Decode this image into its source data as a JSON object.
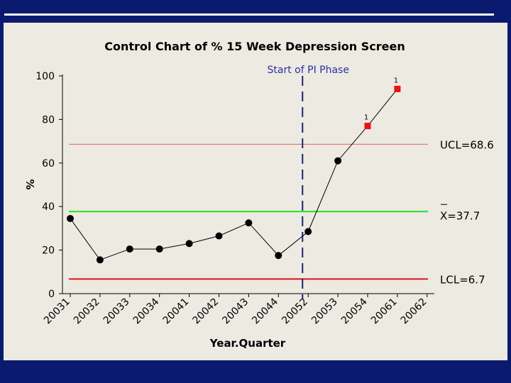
{
  "colors": {
    "background": "#0a1a6e",
    "panel": "#edeae2",
    "ucl_line": "#e06060",
    "mean_line": "#22dd22",
    "lcl_line": "#dd1111",
    "phase_line": "#1a237e",
    "point": "#000000",
    "flagged_point": "#ee1111"
  },
  "chart_data": {
    "type": "line",
    "title": "Control Chart of % 15 Week Depression Screen",
    "xlabel": "Year.Quarter",
    "ylabel": "%",
    "ylim": [
      0,
      100
    ],
    "yticks": [
      0,
      20,
      40,
      60,
      80,
      100
    ],
    "categories": [
      "20031",
      "20032",
      "20033",
      "20034",
      "20041",
      "20042",
      "20043",
      "20044",
      "20052",
      "20053",
      "20054",
      "20061",
      "20062"
    ],
    "values": [
      34.5,
      15.5,
      20.5,
      20.5,
      23,
      26.5,
      32.5,
      17.5,
      28.5,
      61,
      77,
      94,
      null
    ],
    "flagged": [
      false,
      false,
      false,
      false,
      false,
      false,
      false,
      false,
      false,
      false,
      true,
      true,
      false
    ],
    "flag_text": "1",
    "ucl": 68.6,
    "mean": 37.7,
    "lcl": 6.7,
    "ucl_label": "UCL=68.6",
    "mean_label": "X=37.7",
    "lcl_label": "LCL=6.7",
    "phase_label": "Start of PI Phase",
    "phase_after_index": 8
  }
}
